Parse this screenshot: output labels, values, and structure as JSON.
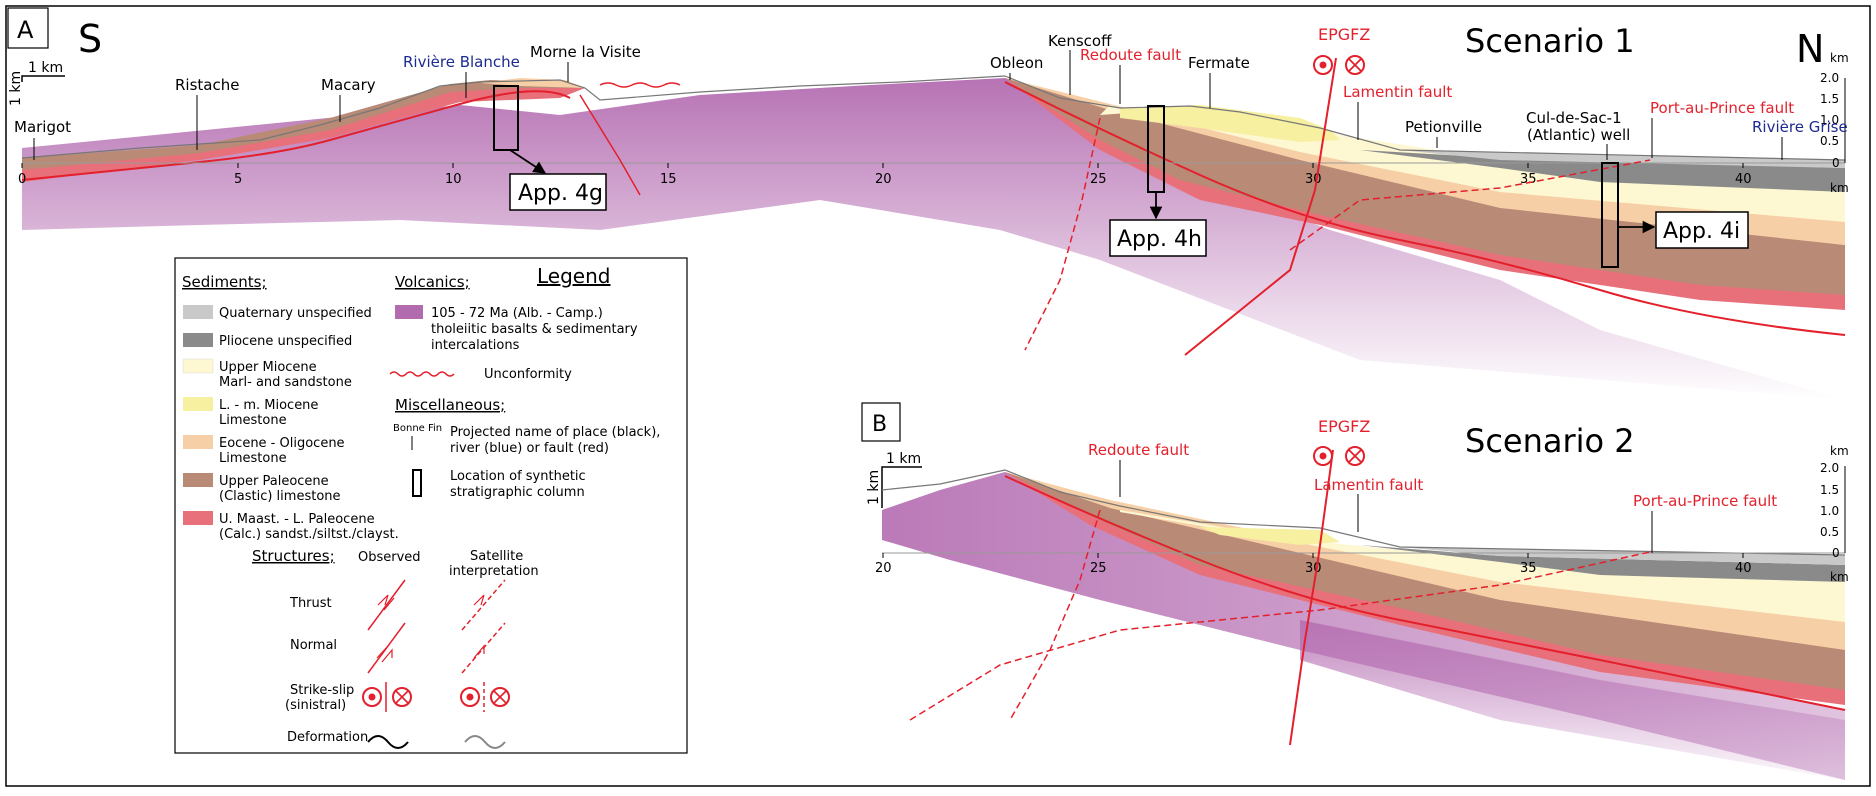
{
  "panel_a": {
    "letter": "A",
    "south": "S",
    "north": "N",
    "scenario": "Scenario 1",
    "scale_h": "1 km",
    "scale_v": "1 km",
    "km_top": "km",
    "km_bottom": "km",
    "elev_ticks": [
      "2.0",
      "1.5",
      "1.0",
      "0.5",
      "0"
    ],
    "x_ticks": [
      "0",
      "5",
      "10",
      "15",
      "20",
      "25",
      "30",
      "35",
      "40"
    ],
    "places": [
      "Marigot",
      "Ristache",
      "Macary",
      "Morne la Visite",
      "Obleon",
      "Kenscoff",
      "Fermate",
      "Petionville",
      "Cul-de-Sac-1",
      "(Atlantic) well"
    ],
    "rivers": [
      "Rivière Blanche",
      "Rivière Grise"
    ],
    "faults": [
      "EPGFZ",
      "Redoute fault",
      "Lamentin fault",
      "Port-au-Prince fault"
    ],
    "appendices": [
      "App. 4g",
      "App. 4h",
      "App. 4i"
    ]
  },
  "panel_b": {
    "letter": "B",
    "scenario": "Scenario 2",
    "scale_h": "1 km",
    "scale_v": "1 km",
    "km_top": "km",
    "km_bottom": "km",
    "elev_ticks": [
      "2.0",
      "1.5",
      "1.0",
      "0.5",
      "0"
    ],
    "x_ticks": [
      "20",
      "25",
      "30",
      "35",
      "40"
    ],
    "faults": [
      "EPGFZ",
      "Redoute fault",
      "Lamentin fault",
      "Port-au-Prince fault"
    ]
  },
  "legend": {
    "title": "Legend",
    "sediments_heading": "Sediments;",
    "sediments": [
      {
        "lines": [
          "Quaternary unspecified"
        ],
        "color": "#c9c9c9"
      },
      {
        "lines": [
          "Pliocene unspecified"
        ],
        "color": "#8a8a8a"
      },
      {
        "lines": [
          "Upper Miocene",
          "Marl- and sandstone"
        ],
        "color": "#fdf7d2"
      },
      {
        "lines": [
          "L. - m. Miocene",
          "Limestone"
        ],
        "color": "#f6f0a0"
      },
      {
        "lines": [
          "Eocene - Oligocene",
          "Limestone"
        ],
        "color": "#f7cfa6"
      },
      {
        "lines": [
          "Upper Paleocene",
          "(Clastic) limestone"
        ],
        "color": "#b98a76"
      },
      {
        "lines": [
          "U. Maast. - L. Paleocene",
          "(Calc.) sandst./siltst./clayst."
        ],
        "color": "#e8707a"
      }
    ],
    "volcanics_heading": "Volcanics;",
    "volcanics_lines": [
      "105 - 72 Ma (Alb. - Camp.)",
      "tholeiitic basalts & sedimentary",
      "intercalations"
    ],
    "volcanics_color": "#b36bb0",
    "unconformity": "Unconformity",
    "misc_heading": "Miscellaneous;",
    "place_example": "Bonne Fin",
    "place_lines": [
      "Projected name of place (black),",
      "river (blue) or fault (red)"
    ],
    "column_lines": [
      "Location of synthetic",
      "stratigraphic column"
    ],
    "structures_heading": "Structures;",
    "observed": "Observed",
    "satellite_lines": [
      "Satellite",
      "interpretation"
    ],
    "thrust": "Thrust",
    "normal": "Normal",
    "strike_slip_lines": [
      "Strike-slip",
      "(sinistral)"
    ],
    "deformation": "Deformation"
  },
  "colors": {
    "fault_red": "#e3202c",
    "river_blue": "#1d2a8f",
    "volcanic_purple": "#b36bb0",
    "quaternary": "#c9c9c9",
    "pliocene": "#8a8a8a",
    "upper_miocene": "#fdf7d2",
    "lm_miocene": "#f6f0a0",
    "eocene_oligocene": "#f7cfa6",
    "upper_paleocene": "#b98a76",
    "maast_paleocene": "#e8707a"
  }
}
